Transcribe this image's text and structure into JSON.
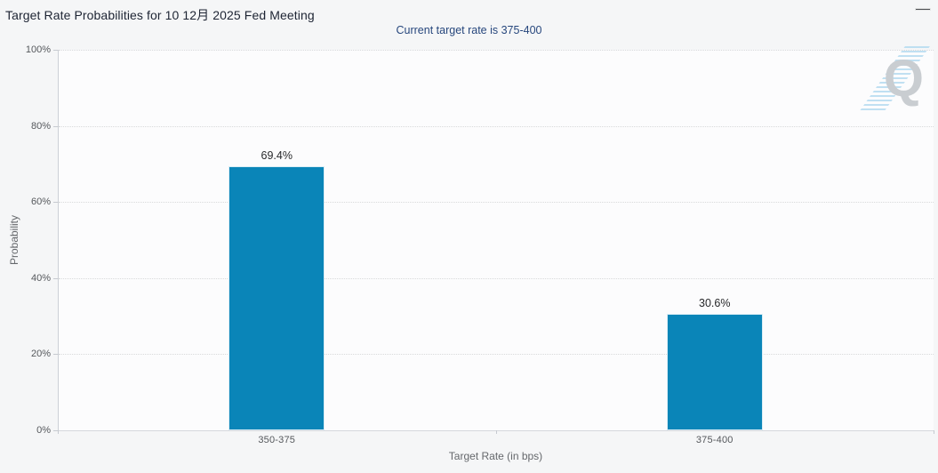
{
  "chart_data": {
    "type": "bar",
    "title": "Target Rate Probabilities for 10 12月 2025 Fed Meeting",
    "subtitle": "Current target rate is 375-400",
    "categories": [
      "350-375",
      "375-400"
    ],
    "values": [
      69.4,
      30.6
    ],
    "value_labels": [
      "69.4%",
      "30.6%"
    ],
    "xlabel": "Target Rate (in bps)",
    "ylabel": "Probability",
    "ylim": [
      0,
      100
    ],
    "ytick_values": [
      0,
      20,
      40,
      60,
      80,
      100
    ],
    "ytick_labels": [
      "0%",
      "20%",
      "40%",
      "60%",
      "80%",
      "100%"
    ],
    "grid": "horizontal-dotted",
    "legend": "none",
    "bar_color": "#0a85b8",
    "title_color": "#1d2433",
    "subtitle_color": "#27477d",
    "watermark_letter": "Q"
  },
  "menu": {
    "icon": "hamburger-menu-icon"
  }
}
